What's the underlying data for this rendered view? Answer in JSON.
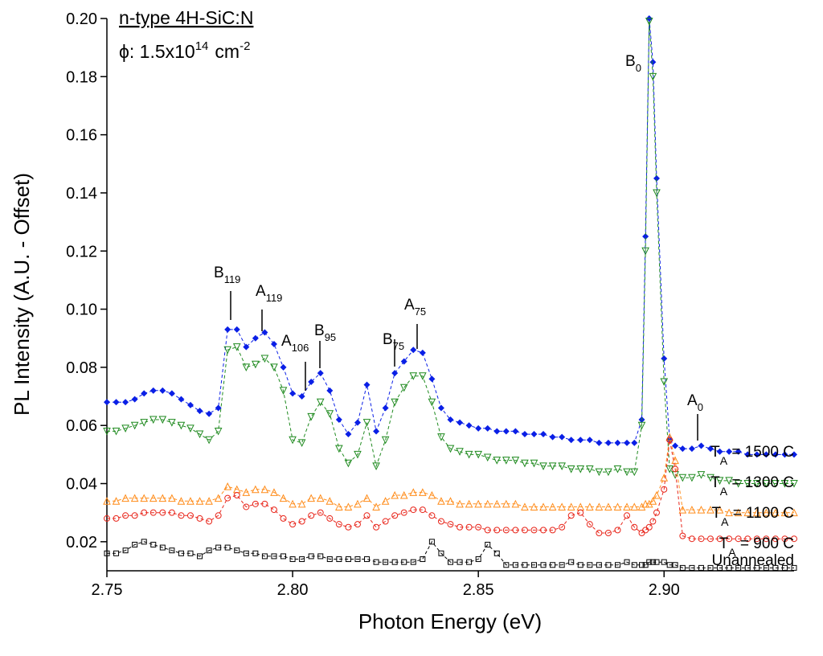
{
  "chart_data": {
    "type": "line",
    "title": "n-type 4H-SiC:N",
    "fluence": {
      "prefix": "ϕ:  1.5x10",
      "exponent": "14",
      "unit": "cm",
      "unit_exponent": "-2"
    },
    "x_label": "Photon Energy (eV)",
    "y_label": "PL Intensity (A.U. - Offset)",
    "xlim": [
      2.75,
      2.935
    ],
    "ylim": [
      0.01,
      0.2
    ],
    "xticks": [
      2.75,
      {
        "value": 2.8,
        "label": "2.80"
      },
      2.85,
      {
        "value": 2.9,
        "label": "2.90"
      }
    ],
    "yticks": [
      0.02,
      0.04,
      0.06,
      0.08,
      {
        "value": 0.1,
        "label": "0.10"
      },
      0.12,
      0.14,
      0.16,
      0.18,
      {
        "value": 0.2,
        "label": "0.20"
      }
    ],
    "x": [
      2.75,
      2.7525,
      2.755,
      2.7575,
      2.76,
      2.7625,
      2.765,
      2.7675,
      2.77,
      2.7725,
      2.775,
      2.7775,
      2.78,
      2.7825,
      2.785,
      2.7875,
      2.79,
      2.7925,
      2.795,
      2.7975,
      2.8,
      2.8025,
      2.805,
      2.8075,
      2.81,
      2.8125,
      2.815,
      2.8175,
      2.82,
      2.8225,
      2.825,
      2.8275,
      2.83,
      2.8325,
      2.835,
      2.8375,
      2.84,
      2.8425,
      2.845,
      2.8475,
      2.85,
      2.8525,
      2.855,
      2.8575,
      2.86,
      2.8625,
      2.865,
      2.8675,
      2.87,
      2.8725,
      2.875,
      2.8775,
      2.88,
      2.8825,
      2.885,
      2.8875,
      2.89,
      2.892,
      2.894,
      2.895,
      2.896,
      2.897,
      2.898,
      2.9,
      2.9015,
      2.903,
      2.905,
      2.9075,
      2.91,
      2.9125,
      2.915,
      2.9175,
      2.92,
      2.9225,
      2.925,
      2.9275,
      2.93,
      2.9325,
      2.935
    ],
    "series": [
      {
        "name": "TA = 1500 C",
        "color": "#0a1fe6",
        "marker": "diamond",
        "values": [
          0.068,
          0.068,
          0.068,
          0.069,
          0.071,
          0.072,
          0.072,
          0.071,
          0.069,
          0.067,
          0.065,
          0.064,
          0.066,
          0.093,
          0.093,
          0.087,
          0.09,
          0.092,
          0.088,
          0.08,
          0.071,
          0.07,
          0.075,
          0.078,
          0.072,
          0.062,
          0.057,
          0.061,
          0.074,
          0.058,
          0.066,
          0.078,
          0.082,
          0.086,
          0.085,
          0.076,
          0.066,
          0.062,
          0.061,
          0.06,
          0.059,
          0.059,
          0.058,
          0.058,
          0.058,
          0.057,
          0.057,
          0.057,
          0.056,
          0.056,
          0.055,
          0.055,
          0.055,
          0.054,
          0.054,
          0.054,
          0.054,
          0.054,
          0.062,
          0.125,
          0.2,
          0.185,
          0.145,
          0.083,
          0.055,
          0.053,
          0.052,
          0.052,
          0.053,
          0.052,
          0.051,
          0.051,
          0.051,
          0.05,
          0.05,
          0.05,
          0.05,
          0.05,
          0.05
        ]
      },
      {
        "name": "TA = 1300 C",
        "color": "#1f8a1f",
        "marker": "triangle-down",
        "values": [
          0.058,
          0.058,
          0.059,
          0.06,
          0.061,
          0.062,
          0.062,
          0.061,
          0.06,
          0.059,
          0.057,
          0.055,
          0.058,
          0.086,
          0.087,
          0.08,
          0.081,
          0.083,
          0.08,
          0.072,
          0.055,
          0.054,
          0.063,
          0.068,
          0.064,
          0.052,
          0.047,
          0.05,
          0.061,
          0.046,
          0.055,
          0.068,
          0.073,
          0.077,
          0.077,
          0.068,
          0.056,
          0.052,
          0.051,
          0.05,
          0.05,
          0.049,
          0.048,
          0.048,
          0.048,
          0.047,
          0.047,
          0.046,
          0.046,
          0.046,
          0.045,
          0.045,
          0.045,
          0.044,
          0.044,
          0.045,
          0.044,
          0.044,
          0.06,
          0.12,
          0.199,
          0.18,
          0.14,
          0.075,
          0.045,
          0.043,
          0.042,
          0.042,
          0.043,
          0.042,
          0.041,
          0.041,
          0.04,
          0.04,
          0.04,
          0.04,
          0.04,
          0.04,
          0.04
        ]
      },
      {
        "name": "TA = 1100 C",
        "color": "#ff8c1a",
        "marker": "triangle-up",
        "values": [
          0.034,
          0.034,
          0.035,
          0.035,
          0.035,
          0.035,
          0.035,
          0.035,
          0.034,
          0.034,
          0.034,
          0.034,
          0.035,
          0.039,
          0.038,
          0.037,
          0.038,
          0.038,
          0.037,
          0.035,
          0.033,
          0.033,
          0.035,
          0.035,
          0.034,
          0.032,
          0.032,
          0.033,
          0.035,
          0.032,
          0.034,
          0.036,
          0.036,
          0.037,
          0.037,
          0.036,
          0.034,
          0.034,
          0.033,
          0.033,
          0.033,
          0.033,
          0.033,
          0.033,
          0.033,
          0.032,
          0.032,
          0.032,
          0.032,
          0.032,
          0.032,
          0.032,
          0.032,
          0.032,
          0.032,
          0.032,
          0.032,
          0.032,
          0.032,
          0.033,
          0.033,
          0.034,
          0.036,
          0.042,
          0.056,
          0.048,
          0.031,
          0.031,
          0.031,
          0.031,
          0.031,
          0.03,
          0.03,
          0.03,
          0.03,
          0.03,
          0.03,
          0.03,
          0.03
        ]
      },
      {
        "name": "TA = 900 C",
        "color": "#e8251a",
        "marker": "circle",
        "values": [
          0.028,
          0.028,
          0.029,
          0.029,
          0.03,
          0.03,
          0.03,
          0.03,
          0.029,
          0.029,
          0.028,
          0.027,
          0.029,
          0.035,
          0.036,
          0.032,
          0.033,
          0.033,
          0.031,
          0.028,
          0.026,
          0.027,
          0.029,
          0.03,
          0.028,
          0.026,
          0.025,
          0.026,
          0.029,
          0.025,
          0.027,
          0.029,
          0.03,
          0.031,
          0.031,
          0.029,
          0.027,
          0.026,
          0.025,
          0.025,
          0.025,
          0.024,
          0.024,
          0.024,
          0.024,
          0.024,
          0.024,
          0.024,
          0.024,
          0.025,
          0.029,
          0.03,
          0.026,
          0.023,
          0.023,
          0.024,
          0.029,
          0.025,
          0.023,
          0.024,
          0.025,
          0.027,
          0.03,
          0.038,
          0.055,
          0.045,
          0.022,
          0.021,
          0.021,
          0.021,
          0.021,
          0.021,
          0.021,
          0.021,
          0.021,
          0.021,
          0.021,
          0.021,
          0.021
        ]
      },
      {
        "name": "Unannealed",
        "color": "#000000",
        "marker": "square",
        "values": [
          0.016,
          0.016,
          0.017,
          0.019,
          0.02,
          0.019,
          0.018,
          0.017,
          0.016,
          0.016,
          0.015,
          0.017,
          0.018,
          0.018,
          0.017,
          0.016,
          0.016,
          0.015,
          0.015,
          0.015,
          0.014,
          0.014,
          0.015,
          0.015,
          0.014,
          0.014,
          0.014,
          0.014,
          0.014,
          0.013,
          0.013,
          0.013,
          0.013,
          0.013,
          0.014,
          0.02,
          0.016,
          0.013,
          0.013,
          0.013,
          0.014,
          0.019,
          0.016,
          0.012,
          0.012,
          0.012,
          0.012,
          0.012,
          0.012,
          0.012,
          0.013,
          0.012,
          0.012,
          0.012,
          0.012,
          0.012,
          0.013,
          0.012,
          0.012,
          0.012,
          0.013,
          0.013,
          0.013,
          0.013,
          0.012,
          0.012,
          0.011,
          0.011,
          0.011,
          0.011,
          0.011,
          0.011,
          0.011,
          0.011,
          0.011,
          0.011,
          0.011,
          0.011,
          0.011
        ]
      }
    ],
    "annotations": [
      {
        "label": "B",
        "subscript": "119"
      },
      {
        "label": "A",
        "subscript": "119"
      },
      {
        "label": "A",
        "subscript": "106"
      },
      {
        "label": "B",
        "subscript": "95"
      },
      {
        "label": "B",
        "subscript": "75"
      },
      {
        "label": "A",
        "subscript": "75"
      },
      {
        "label": "B",
        "subscript": "0"
      },
      {
        "label": "A",
        "subscript": "0"
      }
    ]
  }
}
